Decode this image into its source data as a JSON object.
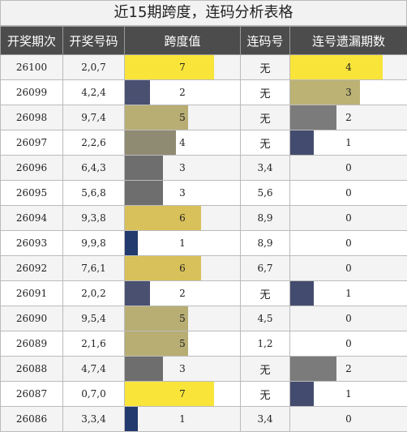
{
  "title": "近15期跨度，连码分析表格",
  "headers": [
    "开奖期次",
    "开奖号码",
    "跨度值",
    "连码号",
    "连号遗漏期数"
  ],
  "colors": {
    "0": "#223a6e",
    "1": "#223a6e",
    "2": "#4a5070",
    "3": "#6e6e6e",
    "4": "#8f8a72",
    "5": "#b8ae74",
    "6": "#d8c15a",
    "7": "#f9e43a",
    "miss1": "#434c6e",
    "miss2": "#7b7b7b",
    "miss3": "#bbb274",
    "miss4": "#f9e43a"
  },
  "span_max": 9,
  "miss_max": 5,
  "rows": [
    {
      "issue": "26100",
      "nums": "2,0,7",
      "span": 7,
      "lian": "无",
      "miss": 4
    },
    {
      "issue": "26099",
      "nums": "4,2,4",
      "span": 2,
      "lian": "无",
      "miss": 3
    },
    {
      "issue": "26098",
      "nums": "9,7,4",
      "span": 5,
      "lian": "无",
      "miss": 2
    },
    {
      "issue": "26097",
      "nums": "2,2,6",
      "span": 4,
      "lian": "无",
      "miss": 1
    },
    {
      "issue": "26096",
      "nums": "6,4,3",
      "span": 3,
      "lian": "3,4",
      "miss": 0
    },
    {
      "issue": "26095",
      "nums": "5,6,8",
      "span": 3,
      "lian": "5,6",
      "miss": 0
    },
    {
      "issue": "26094",
      "nums": "9,3,8",
      "span": 6,
      "lian": "8,9",
      "miss": 0
    },
    {
      "issue": "26093",
      "nums": "9,9,8",
      "span": 1,
      "lian": "8,9",
      "miss": 0
    },
    {
      "issue": "26092",
      "nums": "7,6,1",
      "span": 6,
      "lian": "6,7",
      "miss": 0
    },
    {
      "issue": "26091",
      "nums": "2,0,2",
      "span": 2,
      "lian": "无",
      "miss": 1
    },
    {
      "issue": "26090",
      "nums": "9,5,4",
      "span": 5,
      "lian": "4,5",
      "miss": 0
    },
    {
      "issue": "26089",
      "nums": "2,1,6",
      "span": 5,
      "lian": "1,2",
      "miss": 0
    },
    {
      "issue": "26088",
      "nums": "4,7,4",
      "span": 3,
      "lian": "无",
      "miss": 2
    },
    {
      "issue": "26087",
      "nums": "0,7,0",
      "span": 7,
      "lian": "无",
      "miss": 1
    },
    {
      "issue": "26086",
      "nums": "3,3,4",
      "span": 1,
      "lian": "3,4",
      "miss": 0
    }
  ]
}
